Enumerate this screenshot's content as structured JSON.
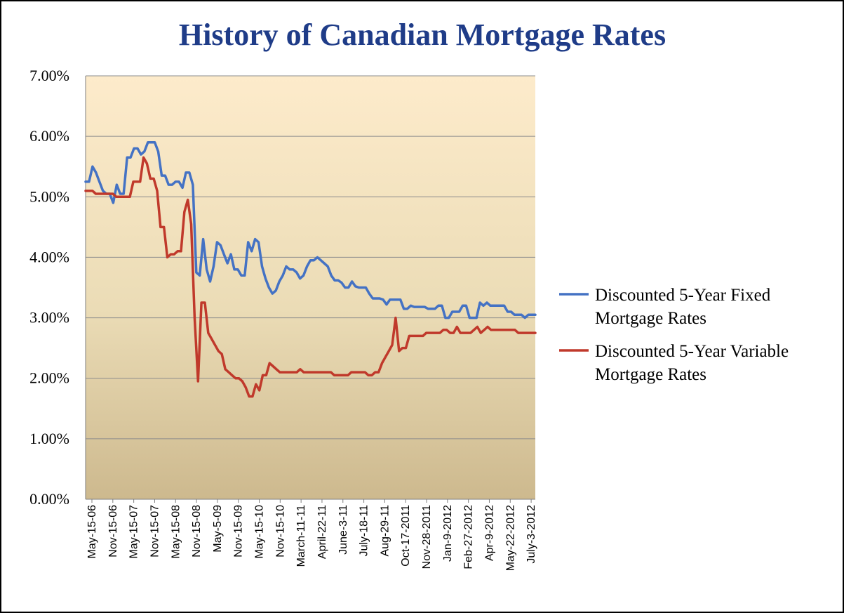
{
  "colors": {
    "fixed": "#4472C4",
    "variable": "#C0392B",
    "title": "#1F3C88",
    "plot_top": "#FDEBCB",
    "plot_mid": "#EBDCB6",
    "plot_bottom": "#CDB98E",
    "grid": "#8C8C8C"
  },
  "chart_data": {
    "type": "line",
    "title": "History of Canadian Mortgage Rates",
    "xlabel": "",
    "ylabel": "",
    "ylim": [
      0,
      0.07
    ],
    "y_ticks": [
      "0.00%",
      "1.00%",
      "2.00%",
      "3.00%",
      "4.00%",
      "5.00%",
      "6.00%",
      "7.00%"
    ],
    "grid": true,
    "legend_position": "right",
    "x_tick_labels": [
      "May-15-06",
      "Nov-15-06",
      "May-15-07",
      "Nov-15-07",
      "May-15-08",
      "Nov-15-08",
      "May-5-09",
      "Nov-15-09",
      "May-15-10",
      "Nov-15-10",
      "March-11-11",
      "April-22-11",
      "June-3-11",
      "July-18-11",
      "Aug-29-11",
      "Oct-17-2011",
      "Nov-28-2011",
      "Jan-9-2012",
      "Feb-27-2012",
      "Apr-9-2012",
      "May-22-2012",
      "July-3-2012"
    ],
    "series": [
      {
        "name": "Discounted 5-Year Fixed Mortgage Rates",
        "values": [
          5.25,
          5.25,
          5.5,
          5.4,
          5.25,
          5.1,
          5.05,
          5.05,
          4.9,
          5.2,
          5.05,
          5.05,
          5.65,
          5.65,
          5.8,
          5.8,
          5.7,
          5.75,
          5.9,
          5.9,
          5.9,
          5.75,
          5.35,
          5.35,
          5.2,
          5.2,
          5.25,
          5.25,
          5.15,
          5.4,
          5.4,
          5.2,
          3.75,
          3.7,
          4.3,
          3.8,
          3.6,
          3.85,
          4.25,
          4.2,
          4.05,
          3.9,
          4.05,
          3.8,
          3.8,
          3.7,
          3.7,
          4.25,
          4.1,
          4.3,
          4.25,
          3.85,
          3.65,
          3.5,
          3.4,
          3.45,
          3.6,
          3.7,
          3.85,
          3.8,
          3.8,
          3.75,
          3.65,
          3.7,
          3.85,
          3.95,
          3.95,
          4.0,
          3.95,
          3.9,
          3.85,
          3.7,
          3.62,
          3.62,
          3.58,
          3.5,
          3.5,
          3.6,
          3.52,
          3.5,
          3.5,
          3.5,
          3.4,
          3.32,
          3.32,
          3.32,
          3.3,
          3.22,
          3.3,
          3.3,
          3.3,
          3.3,
          3.15,
          3.15,
          3.2,
          3.18,
          3.18,
          3.18,
          3.18,
          3.15,
          3.15,
          3.15,
          3.2,
          3.2,
          3.0,
          3.0,
          3.1,
          3.1,
          3.1,
          3.2,
          3.2,
          3.0,
          3.0,
          3.0,
          3.25,
          3.2,
          3.25,
          3.2,
          3.2,
          3.2,
          3.2,
          3.2,
          3.1,
          3.1,
          3.05,
          3.05,
          3.05,
          3.0,
          3.05,
          3.05,
          3.05
        ]
      },
      {
        "name": "Discounted 5-Year Variable Mortgage Rates",
        "values": [
          5.1,
          5.1,
          5.1,
          5.05,
          5.05,
          5.05,
          5.05,
          5.05,
          5.05,
          5.0,
          5.0,
          5.0,
          5.0,
          5.0,
          5.25,
          5.25,
          5.25,
          5.65,
          5.55,
          5.3,
          5.3,
          5.1,
          4.5,
          4.5,
          4.0,
          4.05,
          4.05,
          4.1,
          4.1,
          4.75,
          4.95,
          4.55,
          3.0,
          1.95,
          3.25,
          3.25,
          2.75,
          2.65,
          2.55,
          2.45,
          2.4,
          2.15,
          2.1,
          2.05,
          2.0,
          2.0,
          1.95,
          1.85,
          1.7,
          1.7,
          1.9,
          1.8,
          2.05,
          2.05,
          2.25,
          2.2,
          2.15,
          2.1,
          2.1,
          2.1,
          2.1,
          2.1,
          2.1,
          2.15,
          2.1,
          2.1,
          2.1,
          2.1,
          2.1,
          2.1,
          2.1,
          2.1,
          2.1,
          2.05,
          2.05,
          2.05,
          2.05,
          2.05,
          2.1,
          2.1,
          2.1,
          2.1,
          2.1,
          2.05,
          2.05,
          2.1,
          2.1,
          2.25,
          2.35,
          2.45,
          2.55,
          3.0,
          2.45,
          2.5,
          2.5,
          2.7,
          2.7,
          2.7,
          2.7,
          2.7,
          2.75,
          2.75,
          2.75,
          2.75,
          2.75,
          2.8,
          2.8,
          2.75,
          2.75,
          2.85,
          2.75,
          2.75,
          2.75,
          2.75,
          2.8,
          2.85,
          2.75,
          2.8,
          2.85,
          2.8,
          2.8,
          2.8,
          2.8,
          2.8,
          2.8,
          2.8,
          2.8,
          2.75,
          2.75,
          2.75,
          2.75,
          2.75,
          2.75
        ]
      }
    ]
  }
}
